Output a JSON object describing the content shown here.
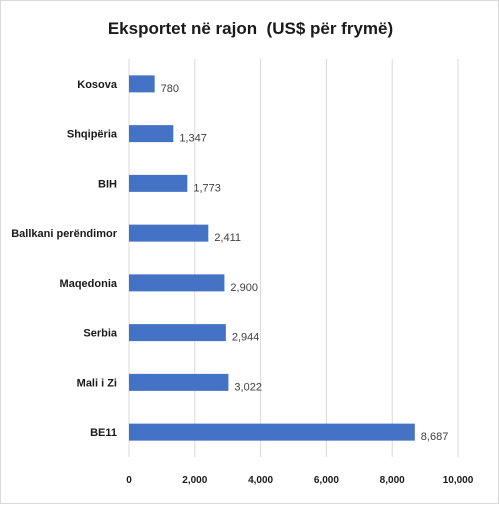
{
  "chart_data": {
    "type": "bar",
    "orientation": "horizontal",
    "title": "Eksportet në rajon  (US$ për frymë)",
    "categories": [
      "Kosova",
      "Shqipëria",
      "BIH",
      "Ballkani perëndimor",
      "Maqedonia",
      "Serbia",
      "Mali i Zi",
      "BE11"
    ],
    "values": [
      780,
      1347,
      1773,
      2411,
      2900,
      2944,
      3022,
      8687
    ],
    "value_labels": [
      "780",
      "1,347",
      "1,773",
      "2,411",
      "2,900",
      "2,944",
      "3,022",
      "8,687"
    ],
    "xlim": [
      0,
      10000
    ],
    "x_ticks": [
      "0",
      "2,000",
      "4,000",
      "6,000",
      "8,000",
      "10,000"
    ],
    "grid": "vertical",
    "bar_color": "#4472c4",
    "grid_color": "#d9d9d9"
  }
}
